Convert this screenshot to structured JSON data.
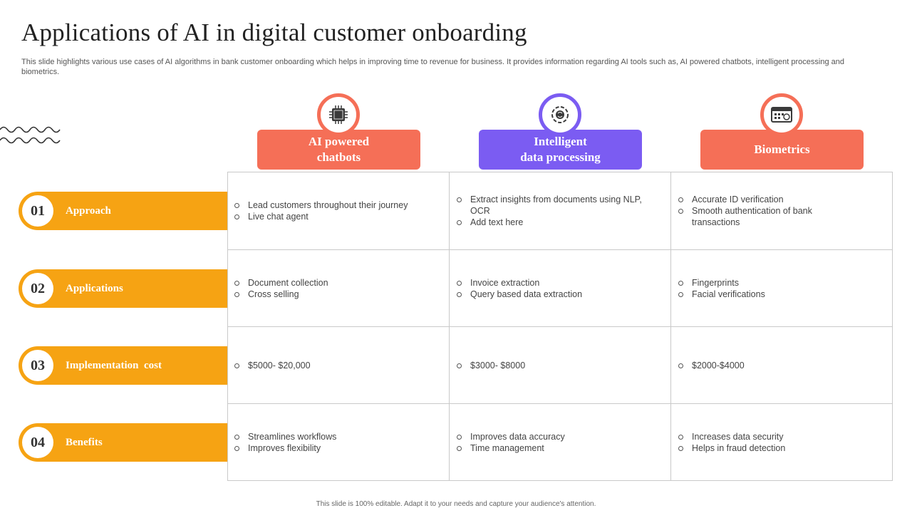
{
  "title": "Applications of AI in digital customer onboarding",
  "subtitle": "This slide highlights various use cases of AI algorithms in bank customer onboarding which helps in improving time to revenue for business. It provides information regarding AI tools such as, AI  powered chatbots, intelligent processing and biometrics.",
  "colors": {
    "coral": "#f56f57",
    "purple": "#7b5cf2",
    "orange": "#f6a313"
  },
  "columns": [
    {
      "label": "AI powered\nchatbots",
      "icon": "ai-chip-icon",
      "color": "#f56f57"
    },
    {
      "label": "Intelligent\ndata processing",
      "icon": "brain-gear-icon",
      "color": "#7b5cf2"
    },
    {
      "label": "Biometrics",
      "icon": "keyboard-screen-icon",
      "color": "#f56f57"
    }
  ],
  "rows": [
    {
      "number": "01",
      "label": "Approach",
      "cells": [
        [
          "Lead customers throughout their journey",
          "Live chat agent"
        ],
        [
          "Extract insights from documents using NLP, OCR",
          "Add text here"
        ],
        [
          "Accurate ID verification",
          "Smooth authentication of bank transactions"
        ]
      ]
    },
    {
      "number": "02",
      "label": "Applications",
      "cells": [
        [
          "Document collection",
          "Cross selling"
        ],
        [
          "Invoice  extraction",
          "Query based data extraction"
        ],
        [
          "Fingerprints",
          "Facial verifications"
        ]
      ]
    },
    {
      "number": "03",
      "label": "Implementation  cost",
      "cells": [
        [
          "$5000- $20,000"
        ],
        [
          "$3000- $8000"
        ],
        [
          "$2000-$4000"
        ]
      ]
    },
    {
      "number": "04",
      "label": "Benefits",
      "cells": [
        [
          "Streamlines workflows",
          "Improves  flexibility"
        ],
        [
          "Improves  data accuracy",
          "Time management"
        ],
        [
          "Increases data security",
          "Helps in fraud detection"
        ]
      ]
    }
  ],
  "footer": "This slide is 100% editable.  Adapt it to your needs and capture your audience's attention."
}
